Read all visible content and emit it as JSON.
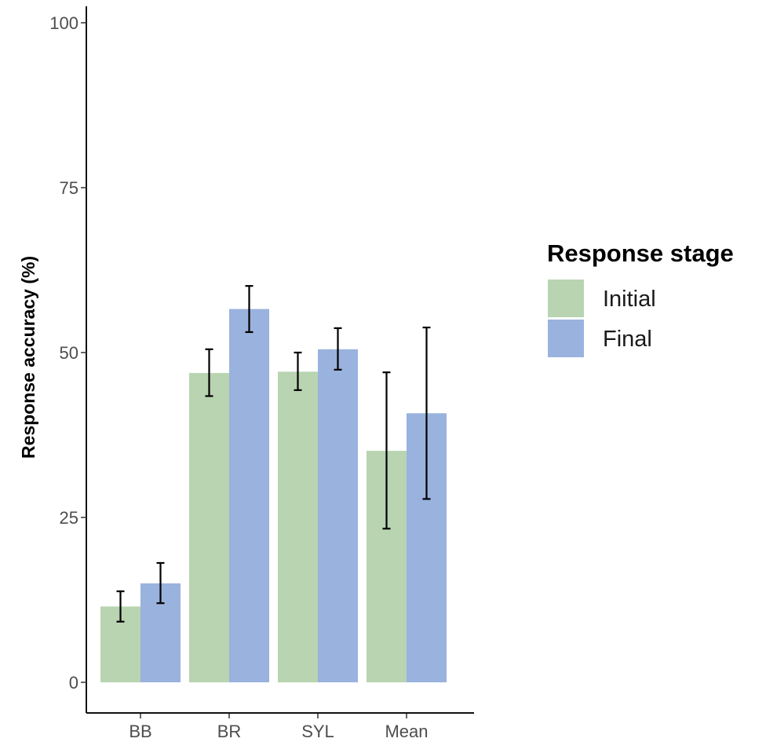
{
  "chart_data": {
    "type": "bar",
    "categories": [
      "BB",
      "BR",
      "SYL",
      "Mean"
    ],
    "series": [
      {
        "name": "Initial",
        "color": "#b8d4b1",
        "values": [
          11.5,
          46.9,
          47.1,
          35.1
        ],
        "error_low": [
          9.2,
          43.4,
          44.3,
          23.3
        ],
        "error_high": [
          13.8,
          50.5,
          50.0,
          47.0
        ]
      },
      {
        "name": "Final",
        "color": "#9ab2de",
        "values": [
          15.0,
          56.6,
          50.5,
          40.8
        ],
        "error_low": [
          12.0,
          53.1,
          47.4,
          27.8
        ],
        "error_high": [
          18.1,
          60.1,
          53.7,
          53.8
        ]
      }
    ],
    "title": "",
    "xlabel": "",
    "ylabel": "Response accuracy (%)",
    "ylim": [
      0,
      100
    ],
    "yticks": [
      0,
      25,
      50,
      75,
      100
    ],
    "grid": false,
    "legend": {
      "title": "Response stage",
      "placement": "right"
    }
  }
}
